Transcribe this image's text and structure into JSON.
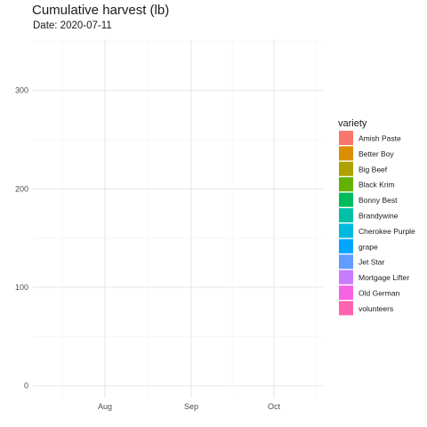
{
  "chart_data": {
    "type": "line",
    "title": "Cumulative harvest (lb)",
    "subtitle": "Date: 2020-07-11",
    "xlabel": "",
    "ylabel": "",
    "x_tick_labels": [
      "Aug",
      "Sep",
      "Oct"
    ],
    "y_ticks": [
      0,
      100,
      200,
      300
    ],
    "ylim": [
      -12,
      352
    ],
    "grid": true,
    "legend_title": "variety",
    "legend_position": "right",
    "series": [
      {
        "name": "Amish Paste",
        "color": "#F8766D",
        "values": []
      },
      {
        "name": "Better Boy",
        "color": "#DB8E00",
        "values": []
      },
      {
        "name": "Big Beef",
        "color": "#AEA200",
        "values": []
      },
      {
        "name": "Black Krim",
        "color": "#64B200",
        "values": []
      },
      {
        "name": "Bonny Best",
        "color": "#00BD5C",
        "values": []
      },
      {
        "name": "Brandywine",
        "color": "#00C1A7",
        "values": []
      },
      {
        "name": "Cherokee Purple",
        "color": "#00BADE",
        "values": []
      },
      {
        "name": "grape",
        "color": "#00A6FF",
        "values": []
      },
      {
        "name": "Jet Star",
        "color": "#619CFF",
        "values": []
      },
      {
        "name": "Mortgage Lifter",
        "color": "#C77CFF",
        "values": []
      },
      {
        "name": "Old German",
        "color": "#F564E3",
        "values": []
      },
      {
        "name": "volunteers",
        "color": "#FF64B0",
        "values": []
      }
    ]
  }
}
